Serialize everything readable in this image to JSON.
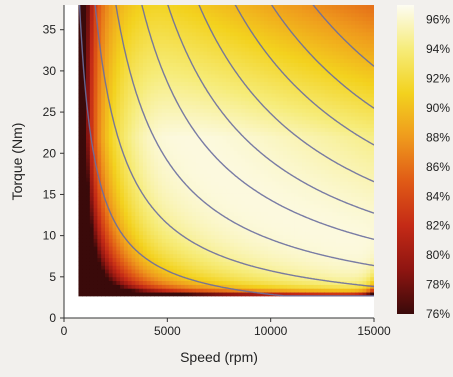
{
  "chart_data": {
    "type": "heatmap",
    "xlabel": "Speed (rpm)",
    "ylabel": "Torque (Nm)",
    "xlim": [
      0,
      15000
    ],
    "ylim": [
      0,
      38
    ],
    "x_ticks": [
      0,
      5000,
      10000,
      15000
    ],
    "y_ticks": [
      0,
      5,
      10,
      15,
      20,
      25,
      30,
      35
    ],
    "colorbar": {
      "min": 76,
      "max": 97,
      "tick_values": [
        96,
        94,
        92,
        90,
        88,
        86,
        84,
        82,
        80,
        78,
        76
      ],
      "tick_labels": [
        "96%",
        "94%",
        "92%",
        "90%",
        "88%",
        "86%",
        "84%",
        "82%",
        "80%",
        "78%",
        "76%"
      ],
      "stops": [
        {
          "value": 76,
          "color": "#3a0a0a"
        },
        {
          "value": 79,
          "color": "#8e1511"
        },
        {
          "value": 82,
          "color": "#c42a16"
        },
        {
          "value": 85,
          "color": "#e05a16"
        },
        {
          "value": 88,
          "color": "#ef9a1d"
        },
        {
          "value": 91,
          "color": "#f3d21e"
        },
        {
          "value": 94,
          "color": "#f6ec7a"
        },
        {
          "value": 97,
          "color": "#fdfcf2"
        }
      ]
    },
    "operating_region": {
      "speed_min": 700,
      "speed_max": 15000,
      "torque_min": 2.7,
      "torque_max": 38
    },
    "efficiency_peak": {
      "speed": 9500,
      "torque": 14,
      "efficiency": 96.5
    },
    "constant_power_curves": [
      {
        "power_kw": 3,
        "color": "#6a6e9e"
      },
      {
        "power_kw": 6,
        "color": "#6a6e9e"
      },
      {
        "power_kw": 10,
        "color": "#6a6e9e"
      },
      {
        "power_kw": 15,
        "color": "#6a6e9e"
      },
      {
        "power_kw": 20,
        "color": "#6a6e9e"
      },
      {
        "power_kw": 26,
        "color": "#6a6e9e"
      },
      {
        "power_kw": 33,
        "color": "#6a6e9e"
      },
      {
        "power_kw": 40,
        "color": "#6a6e9e"
      },
      {
        "power_kw": 48,
        "color": "#6a6e9e"
      }
    ],
    "grid": false,
    "legend": "colorbar-right"
  }
}
